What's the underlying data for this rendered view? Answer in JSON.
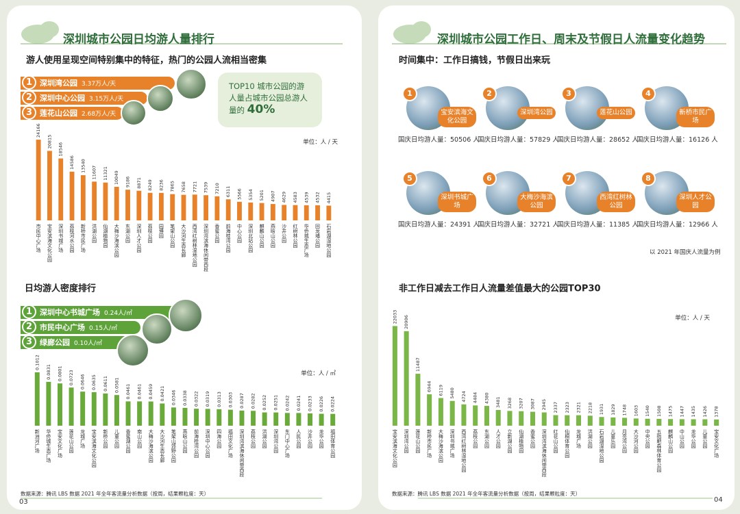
{
  "left": {
    "title": "深圳城市公园日均游人量排行",
    "subtitle": "游人使用呈现空间特别集中的特征，热门的公园人流相当密集",
    "top3": [
      {
        "rank": "1",
        "name": "深圳湾公园",
        "value": "3.37万人/天"
      },
      {
        "rank": "2",
        "name": "深圳中心公园",
        "value": "3.15万人/天"
      },
      {
        "rank": "3",
        "name": "莲花山公园",
        "value": "2.68万人/天"
      }
    ],
    "callout": {
      "text": "TOP10 城市公园的游人量占城市公园总游人量的",
      "highlight": "40%"
    },
    "density_top3": [
      {
        "rank": "1",
        "name": "深圳中心书城广场",
        "value": "0.24人/㎡"
      },
      {
        "rank": "2",
        "name": "市民中心广场",
        "value": "0.15人/㎡"
      },
      {
        "rank": "3",
        "name": "绿廊公园",
        "value": "0.10人/㎡"
      }
    ],
    "source": "数据来源：腾讯 LBS 数据 2021 年全年客流量分析数据（按周，结果颗粒度：天）",
    "page": "03"
  },
  "right": {
    "title": "深圳城市公园工作日、周末及节假日人流量变化趋势",
    "subtitle": "时间集中：工作日搞钱，节假日出来玩",
    "card_label": "国庆日均游人量：",
    "card_unit": "人",
    "cards": [
      {
        "rank": "1",
        "name": "宝安滨海文化公园",
        "value": 50506
      },
      {
        "rank": "2",
        "name": "深圳湾公园",
        "value": 57829
      },
      {
        "rank": "3",
        "name": "莲花山公园",
        "value": 28652
      },
      {
        "rank": "4",
        "name": "新桥市民广场",
        "value": 16126
      },
      {
        "rank": "5",
        "name": "深圳书城广场",
        "value": 24391
      },
      {
        "rank": "6",
        "name": "大梅沙海滨公园",
        "value": 32721
      },
      {
        "rank": "7",
        "name": "西湾红树林公园",
        "value": 11385
      },
      {
        "rank": "8",
        "name": "深圳人才公园",
        "value": 12966
      }
    ],
    "note": "以 2021 年国庆人流量为例",
    "source": "数据来源：腾讯 LBS 数据 2021 年全年客流量分析数据（按周，结果颗粒度：天）",
    "page": "04"
  },
  "chart_data": [
    {
      "type": "bar",
      "unit_label": "单位：人 / 天",
      "color": "#e8822a",
      "ylim": [
        0,
        25000
      ],
      "categories": [
        "市民中心广场",
        "宝安滨海文化公园",
        "深圳书城广场",
        "荔枝河水公园",
        "新桥市民广场",
        "洪湖公园",
        "仙湖植物园",
        "大梅沙海滨公园",
        "东湖公园",
        "深圳人才公园",
        "荔枝公园",
        "园博园",
        "笔架山公园",
        "大沙河生态长廊",
        "西湾红树林湿地公园",
        "深圳湾滨海休闲带西段",
        "香蜜公园",
        "前海桂湾公园",
        "中心公园",
        "深圳北站公园",
        "麒麟山公园",
        "燕晗山公园",
        "沙井公园",
        "红树林公园",
        "华侨城生态广场",
        "回龙埔公园",
        "石岩湖湿地公园"
      ],
      "values": [
        24166,
        20815,
        18546,
        14586,
        13540,
        11607,
        11321,
        10049,
        9186,
        8871,
        8249,
        8236,
        7865,
        7658,
        7721,
        7539,
        7210,
        6311,
        5566,
        5354,
        5201,
        4907,
        4629,
        4583,
        4539,
        4532,
        4415
      ]
    },
    {
      "type": "bar",
      "title": "日均游人密度排行",
      "unit_label": "单位：人 / ㎡",
      "color": "#6aaa3a",
      "ylim": [
        0,
        0.105
      ],
      "categories": [
        "新洲河广场",
        "华侨城生态广场",
        "宝安文化广场",
        "莲花山公园",
        "龙城广场",
        "宝安滨海文化公园",
        "新桥公园",
        "儿童公园",
        "香蜜湖公园",
        "南山公园",
        "大梅沙海滨公园",
        "大沙河生态长廊",
        "笔架山郊野公园",
        "燕晗山公园",
        "前海桂湾公园",
        "深圳中心公园",
        "四海公园",
        "福田文化广场",
        "深圳湾滨海休闲带西段",
        "荔枝公园",
        "洪湖公园",
        "深圳湾公园",
        "东门中心广场",
        "人民公园",
        "沙井公园",
        "龙华公园",
        "福田体育公园"
      ],
      "values": [
        0.1012,
        0.0831,
        0.0801,
        0.0723,
        0.0646,
        0.0635,
        0.0611,
        0.0581,
        0.0461,
        0.0461,
        0.0459,
        0.0421,
        0.0346,
        0.0338,
        0.0322,
        0.0319,
        0.0313,
        0.0303,
        0.0287,
        0.0282,
        0.0252,
        0.0251,
        0.0242,
        0.0241,
        0.0233,
        0.0226,
        0.0224
      ]
    },
    {
      "type": "bar",
      "title": "非工作日减去工作日人流量差值最大的公园TOP30",
      "unit_label": "单位：人 / 天",
      "color": "#7ab648",
      "ylim": [
        0,
        23000
      ],
      "categories": [
        "宝安滨海文化公园",
        "深圳湾公园",
        "莲花山公园",
        "新桥市民广场",
        "大梅沙海滨公园",
        "深圳书城广场",
        "西湾红树林湿地公园",
        "荔枝公园",
        "东湖公园",
        "人才公园",
        "立新湖公园",
        "仙湖植物园",
        "香蜜公园",
        "深圳湾滨海休闲带西段",
        "红花山公园",
        "仙桐体育公园",
        "龙城广场",
        "洪湖公园",
        "石岩湖湿地公园",
        "儿童乐园",
        "月亮湾公园",
        "大沙河公园",
        "中央公园",
        "五指耙森林体育公园",
        "麒麟山公园",
        "中山公园",
        "龙华公园",
        "儿童公园",
        "宝安文化广场"
      ],
      "values": [
        22033,
        20906,
        11487,
        6944,
        6119,
        5480,
        4724,
        4484,
        4380,
        3481,
        3268,
        3207,
        3087,
        2945,
        2337,
        2323,
        2321,
        2218,
        1931,
        1829,
        1748,
        1603,
        1540,
        1508,
        1475,
        1447,
        1435,
        1426,
        1378
      ]
    }
  ]
}
